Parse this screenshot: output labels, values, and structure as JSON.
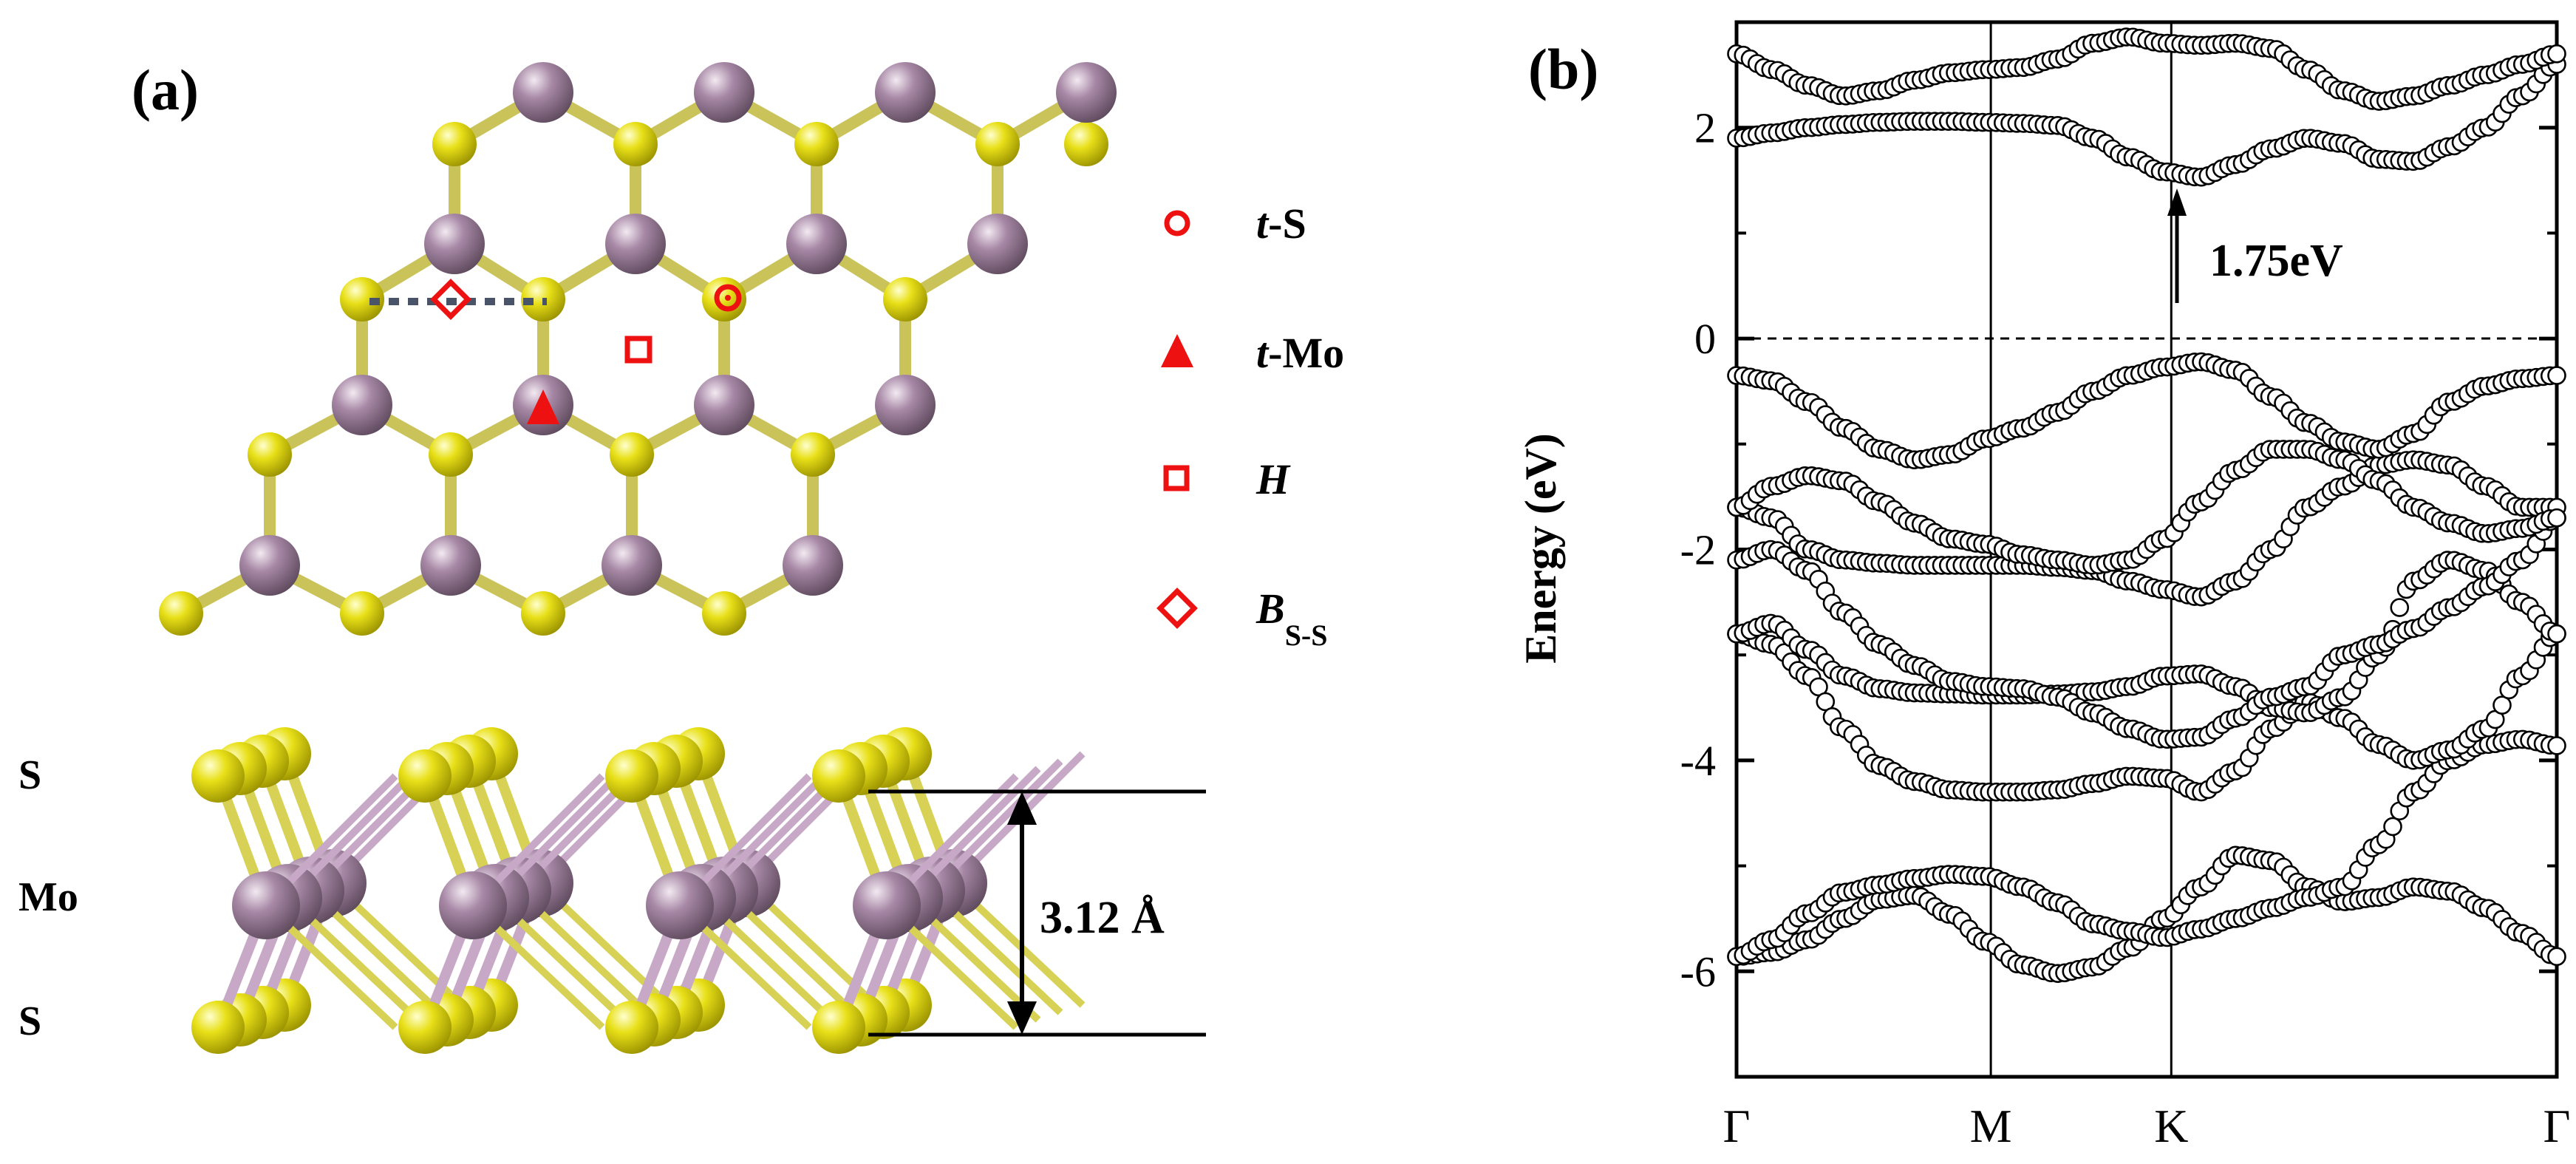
{
  "panel_a": {
    "label": "(a)",
    "legend": [
      {
        "marker": "circle-marker",
        "prefix": "t",
        "suffix": "-S",
        "sub": ""
      },
      {
        "marker": "triangle-marker",
        "prefix": "t",
        "suffix": "-Mo",
        "sub": ""
      },
      {
        "marker": "square-marker",
        "prefix": "H",
        "suffix": "",
        "sub": ""
      },
      {
        "marker": "diamond-marker",
        "prefix": "B",
        "suffix": "",
        "sub": "S-S"
      }
    ],
    "side_view": {
      "layer_labels": [
        "S",
        "Mo",
        "S"
      ],
      "thickness": "3.12 Å"
    },
    "colors": {
      "Mo": "#a788a6",
      "S": "#e8e018",
      "marker": "#ee1111",
      "dashed_line": "#4a5468"
    }
  },
  "panel_b": {
    "label": "(b)",
    "gap_label": "1.75eV",
    "chart_data": {
      "type": "scatter",
      "title": "",
      "xlabel": "",
      "ylabel": "Energy (eV)",
      "ylim": [
        -7,
        3
      ],
      "yticks": [
        "2",
        "0",
        "-2",
        "-4",
        "-6"
      ],
      "ytick_values": [
        2,
        0,
        -2,
        -4,
        -6
      ],
      "kpoints": [
        "Γ",
        "M",
        "K",
        "Γ"
      ],
      "kpoint_positions": [
        0,
        0.31,
        0.53,
        1.0
      ],
      "fermi_level": 0,
      "band_gap": {
        "from": -0.22,
        "to": 1.53,
        "at": "K",
        "value_eV": 1.75
      },
      "series": [
        {
          "values": [
            -5.86,
            -5.82,
            -5.7,
            -5.5,
            -5.32,
            -5.28,
            -5.46,
            -5.72,
            -5.94,
            -6.02,
            -5.96,
            -5.78,
            -5.5,
            -5.2,
            -4.9,
            -4.95,
            -5.2,
            -5.34,
            -5.3,
            -5.2,
            -5.24,
            -5.4,
            -5.64,
            -5.86
          ]
        },
        {
          "values": [
            -5.86,
            -5.7,
            -5.45,
            -5.25,
            -5.18,
            -5.12,
            -5.08,
            -5.1,
            -5.2,
            -5.35,
            -5.55,
            -5.62,
            -5.68,
            -5.6,
            -5.5,
            -5.4,
            -5.3,
            -5.2,
            -4.8,
            -4.3,
            -4.0,
            -3.85,
            -3.8,
            -3.86
          ]
        },
        {
          "values": [
            -2.8,
            -2.9,
            -3.2,
            -3.7,
            -4.05,
            -4.2,
            -4.28,
            -4.3,
            -4.3,
            -4.28,
            -4.22,
            -4.15,
            -4.17,
            -4.3,
            -4.1,
            -3.7,
            -3.45,
            -3.6,
            -3.85,
            -4.0,
            -3.9,
            -3.7,
            -3.2,
            -2.8
          ]
        },
        {
          "values": [
            -2.8,
            -2.7,
            -2.95,
            -3.2,
            -3.32,
            -3.36,
            -3.37,
            -3.38,
            -3.38,
            -3.37,
            -3.35,
            -3.3,
            -3.2,
            -3.18,
            -3.3,
            -3.5,
            -3.55,
            -3.4,
            -3.0,
            -2.3,
            -2.1,
            -2.2,
            -2.5,
            -2.8
          ]
        },
        {
          "values": [
            -2.1,
            -2.0,
            -2.2,
            -2.6,
            -2.9,
            -3.1,
            -3.25,
            -3.3,
            -3.32,
            -3.4,
            -3.55,
            -3.7,
            -3.8,
            -3.78,
            -3.6,
            -3.4,
            -3.3,
            -3.0,
            -2.9,
            -2.75,
            -2.55,
            -2.35,
            -2.1,
            -1.7
          ]
        },
        {
          "values": [
            -1.6,
            -1.7,
            -2.0,
            -2.1,
            -2.13,
            -2.15,
            -2.15,
            -2.15,
            -2.15,
            -2.17,
            -2.2,
            -2.3,
            -2.38,
            -2.45,
            -2.3,
            -2.0,
            -1.6,
            -1.4,
            -1.2,
            -1.15,
            -1.2,
            -1.4,
            -1.6,
            -1.6
          ]
        },
        {
          "values": [
            -1.6,
            -1.4,
            -1.3,
            -1.35,
            -1.55,
            -1.75,
            -1.9,
            -1.95,
            -2.05,
            -2.1,
            -2.15,
            -2.1,
            -1.9,
            -1.55,
            -1.25,
            -1.05,
            -1.05,
            -1.15,
            -1.35,
            -1.6,
            -1.75,
            -1.85,
            -1.8,
            -1.7
          ]
        },
        {
          "values": [
            -0.35,
            -0.4,
            -0.6,
            -0.85,
            -1.05,
            -1.15,
            -1.1,
            -0.95,
            -0.85,
            -0.7,
            -0.5,
            -0.35,
            -0.27,
            -0.22,
            -0.3,
            -0.55,
            -0.8,
            -0.98,
            -1.05,
            -0.9,
            -0.6,
            -0.45,
            -0.38,
            -0.35
          ]
        },
        {
          "values": [
            1.9,
            1.95,
            2.0,
            2.03,
            2.05,
            2.06,
            2.06,
            2.05,
            2.04,
            2.02,
            1.9,
            1.72,
            1.58,
            1.53,
            1.65,
            1.8,
            1.9,
            1.85,
            1.7,
            1.68,
            1.82,
            2.0,
            2.3,
            2.6
          ]
        },
        {
          "values": [
            2.7,
            2.55,
            2.4,
            2.3,
            2.35,
            2.45,
            2.52,
            2.55,
            2.57,
            2.65,
            2.8,
            2.86,
            2.8,
            2.78,
            2.8,
            2.75,
            2.55,
            2.35,
            2.25,
            2.3,
            2.4,
            2.5,
            2.6,
            2.7
          ]
        }
      ]
    }
  }
}
